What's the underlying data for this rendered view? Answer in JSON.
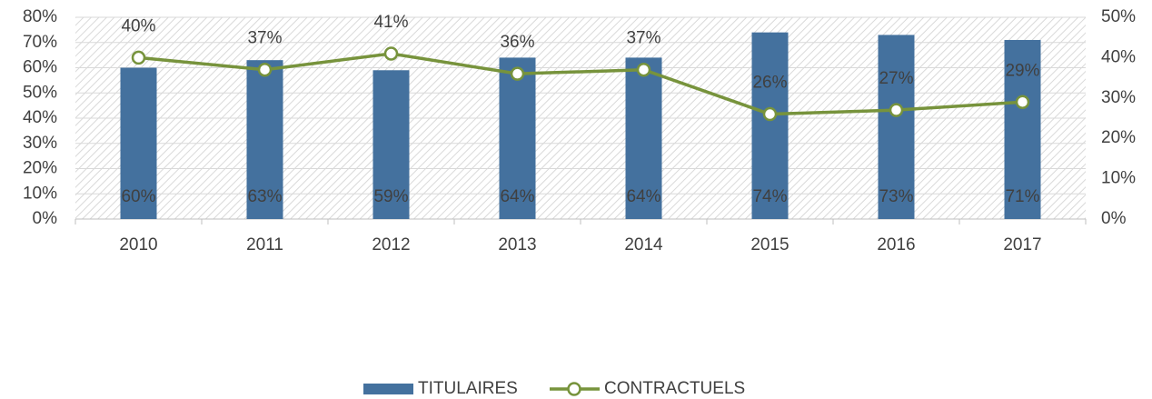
{
  "chart_data": {
    "type": "bar_line",
    "categories": [
      "2010",
      "2011",
      "2012",
      "2013",
      "2014",
      "2015",
      "2016",
      "2017"
    ],
    "series": [
      {
        "name": "TITULAIRES",
        "color": "#44719e",
        "type": "bar",
        "values": [
          60,
          63,
          59,
          64,
          64,
          74,
          73,
          71
        ],
        "value_labels": [
          "60%",
          "63%",
          "59%",
          "64%",
          "64%",
          "74%",
          "73%",
          "71%"
        ]
      },
      {
        "name": "CONTRACTUELS",
        "color": "#77933c",
        "type": "line",
        "axis": "y2",
        "values": [
          40,
          37,
          41,
          36,
          37,
          26,
          27,
          29
        ],
        "value_labels": [
          "40%",
          "37%",
          "41%",
          "36%",
          "37%",
          "26%",
          "27%",
          "29%"
        ]
      }
    ],
    "ylim": [
      0,
      80
    ],
    "yticks": [
      {
        "value": 0,
        "label": "0%"
      },
      {
        "value": 10,
        "label": "10%"
      },
      {
        "value": 20,
        "label": "20%"
      },
      {
        "value": 30,
        "label": "30%"
      },
      {
        "value": 40,
        "label": "40%"
      },
      {
        "value": 50,
        "label": "50%"
      },
      {
        "value": 60,
        "label": "60%"
      },
      {
        "value": 70,
        "label": "70%"
      },
      {
        "value": 80,
        "label": "80%"
      }
    ],
    "y2lim": [
      0,
      50
    ],
    "y2ticks": [
      {
        "value": 0,
        "label": "0%"
      },
      {
        "value": 10,
        "label": "10%"
      },
      {
        "value": 20,
        "label": "20%"
      },
      {
        "value": 30,
        "label": "30%"
      },
      {
        "value": 40,
        "label": "40%"
      },
      {
        "value": 50,
        "label": "50%"
      }
    ],
    "grid": true,
    "legend": "bottom"
  }
}
